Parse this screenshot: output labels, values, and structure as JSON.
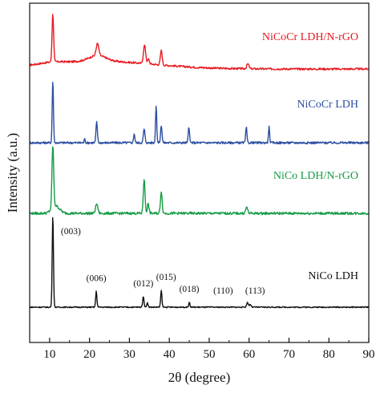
{
  "chart_data": {
    "type": "line",
    "xlabel": "2θ (degree)",
    "ylabel": "Intensity (a.u.)",
    "xlim": [
      5,
      90
    ],
    "x_ticks": [
      "10",
      "20",
      "30",
      "40",
      "50",
      "60",
      "70",
      "80",
      "90"
    ],
    "y_ticks_shown": false,
    "grid": false,
    "series": [
      {
        "name": "NiCoCr LDH/N-rGO",
        "color": "#e8191f",
        "baseline": 0.16,
        "noise": 0.04,
        "bumps": [
          [
            22,
            0.12,
            3.0
          ],
          [
            10.5,
            0.03,
            4.0
          ]
        ],
        "peaks": [
          [
            10.8,
            1.0,
            0.28
          ],
          [
            22.0,
            0.25,
            0.45
          ],
          [
            33.8,
            0.38,
            0.4
          ],
          [
            34.8,
            0.1,
            0.3
          ],
          [
            38.0,
            0.3,
            0.32
          ],
          [
            59.7,
            0.1,
            0.4
          ]
        ]
      },
      {
        "name": "NiCoCr LDH",
        "color": "#2b4ea2",
        "baseline": 0.0,
        "noise": 0.035,
        "bumps": [],
        "peaks": [
          [
            10.8,
            1.0,
            0.22
          ],
          [
            21.8,
            0.33,
            0.25
          ],
          [
            31.2,
            0.15,
            0.22
          ],
          [
            33.7,
            0.22,
            0.28
          ],
          [
            36.7,
            0.6,
            0.22
          ],
          [
            38.0,
            0.28,
            0.25
          ],
          [
            44.9,
            0.26,
            0.22
          ],
          [
            59.3,
            0.25,
            0.22
          ],
          [
            65.0,
            0.26,
            0.2
          ],
          [
            18.8,
            0.06,
            0.2
          ]
        ]
      },
      {
        "name": "NiCo LDH/N-rGO",
        "color": "#159c45",
        "baseline": 0.0,
        "noise": 0.04,
        "bumps": [
          [
            11.5,
            0.12,
            1.4
          ]
        ],
        "peaks": [
          [
            10.8,
            1.0,
            0.3
          ],
          [
            21.8,
            0.15,
            0.4
          ],
          [
            33.7,
            0.55,
            0.3
          ],
          [
            34.7,
            0.15,
            0.3
          ],
          [
            38.0,
            0.35,
            0.3
          ],
          [
            59.4,
            0.1,
            0.35
          ]
        ]
      },
      {
        "name": "NiCo LDH",
        "color": "#111111",
        "baseline": 0.0,
        "noise": 0.012,
        "bumps": [],
        "peaks": [
          [
            10.8,
            1.0,
            0.22
          ],
          [
            21.7,
            0.17,
            0.22
          ],
          [
            33.5,
            0.11,
            0.25
          ],
          [
            34.5,
            0.05,
            0.22
          ],
          [
            38.0,
            0.18,
            0.22
          ],
          [
            45.0,
            0.05,
            0.22
          ],
          [
            59.6,
            0.05,
            0.3
          ],
          [
            60.3,
            0.03,
            0.3
          ]
        ]
      }
    ],
    "peak_annotations": [
      {
        "label": "(003)",
        "x": 10.8,
        "series": "NiCo LDH"
      },
      {
        "label": "(006)",
        "x": 21.7,
        "series": "NiCo LDH"
      },
      {
        "label": "(012)",
        "x": 33.5,
        "series": "NiCo LDH"
      },
      {
        "label": "(015)",
        "x": 38.0,
        "series": "NiCo LDH"
      },
      {
        "label": "(018)",
        "x": 45.0,
        "series": "NiCo LDH"
      },
      {
        "label": "(110)",
        "x": 53.5,
        "series": "NiCo LDH"
      },
      {
        "label": "(113)",
        "x": 61.5,
        "series": "NiCo LDH"
      }
    ]
  }
}
